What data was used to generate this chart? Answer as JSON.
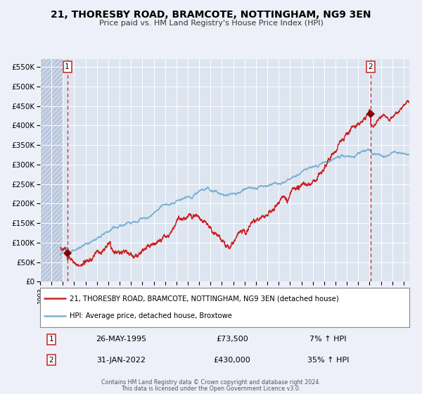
{
  "title": "21, THORESBY ROAD, BRAMCOTE, NOTTINGHAM, NG9 3EN",
  "subtitle": "Price paid vs. HM Land Registry's House Price Index (HPI)",
  "legend_line1": "21, THORESBY ROAD, BRAMCOTE, NOTTINGHAM, NG9 3EN (detached house)",
  "legend_line2": "HPI: Average price, detached house, Broxtowe",
  "sale1_date": "26-MAY-1995",
  "sale1_price": "£73,500",
  "sale1_hpi": "7% ↑ HPI",
  "sale2_date": "31-JAN-2022",
  "sale2_price": "£430,000",
  "sale2_hpi": "35% ↑ HPI",
  "sale1_label": "1",
  "sale2_label": "2",
  "footnote1": "Contains HM Land Registry data © Crown copyright and database right 2024.",
  "footnote2": "This data is licensed under the Open Government Licence v3.0.",
  "hpi_color": "#7ab0d4",
  "price_color": "#cc2222",
  "dot_color": "#880000",
  "vline_color": "#cc2222",
  "bg_color": "#edf0f8",
  "plot_bg": "#dde5f0",
  "hatch_bg": "#c8d4e8",
  "grid_color": "#ffffff",
  "ylim": [
    0,
    570000
  ],
  "xlim_start": 1993.0,
  "xlim_end": 2025.5,
  "sale1_x": 1995.39,
  "sale1_y": 73500,
  "sale2_x": 2022.08,
  "sale2_y": 430000,
  "hpi_start_x": 1995.0
}
